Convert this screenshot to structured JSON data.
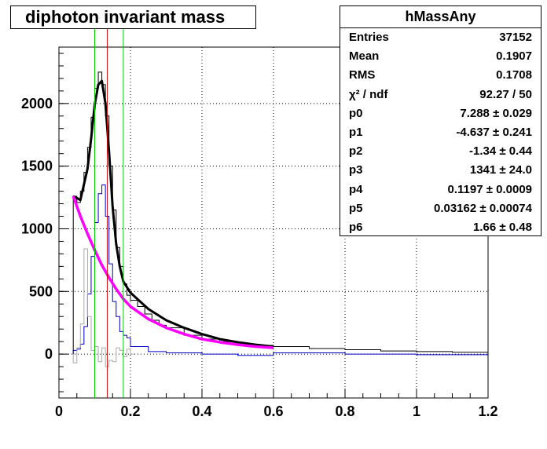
{
  "window": {
    "title": "diphoton invariant mass"
  },
  "stats": {
    "name": "hMassAny",
    "rows": [
      {
        "key": "Entries",
        "value": "37152"
      },
      {
        "key": "Mean",
        "value": "0.1907"
      },
      {
        "key": "RMS",
        "value": "0.1708"
      },
      {
        "key": "χ² / ndf",
        "value": "92.27 / 50"
      },
      {
        "key": "p0",
        "value": "7.288 ± 0.029"
      },
      {
        "key": "p1",
        "value": "-4.637 ± 0.241"
      },
      {
        "key": "p2",
        "value": "-1.34 ± 0.44"
      },
      {
        "key": "p3",
        "value": "1341 ± 24.0"
      },
      {
        "key": "p4",
        "value": "0.1197 ± 0.0009"
      },
      {
        "key": "p5",
        "value": "0.03162 ± 0.00074"
      },
      {
        "key": "p6",
        "value": "1.66 ± 0.48"
      }
    ]
  },
  "chart_data": {
    "type": "line",
    "title": "diphoton invariant mass",
    "xlabel": "",
    "ylabel": "",
    "xlim": [
      0,
      1.2
    ],
    "ylim": [
      -350,
      2450
    ],
    "grid": true,
    "xticks": [
      0,
      0.2,
      0.4,
      0.6,
      0.8,
      1,
      1.2
    ],
    "xtick_labels": [
      "0",
      "0.2",
      "0.4",
      "0.6",
      "0.8",
      "1",
      "1.2"
    ],
    "yticks": [
      0,
      500,
      1000,
      1500,
      2000
    ],
    "ytick_labels": [
      "0",
      "500",
      "1000",
      "1500",
      "2000"
    ],
    "vertical_lines": [
      {
        "x": 0.1,
        "color": "#00cc00"
      },
      {
        "x": 0.135,
        "color": "#cc0000"
      },
      {
        "x": 0.18,
        "color": "#00cc00"
      }
    ],
    "colors": {
      "total_hist": "#000000",
      "signal_hist": "#0000cc",
      "other_hist": "#aaaaaa",
      "fit_total": "#000000",
      "fit_background": "#ff00ff"
    },
    "series": [
      {
        "kind": "histogram",
        "color_key": "total_hist",
        "x": [
          0.04,
          0.05,
          0.06,
          0.07,
          0.08,
          0.09,
          0.1,
          0.11,
          0.12,
          0.13,
          0.14,
          0.15,
          0.16,
          0.17,
          0.18,
          0.19,
          0.2,
          0.22,
          0.24,
          0.26,
          0.28,
          0.3,
          0.35,
          0.4,
          0.45,
          0.5,
          0.55,
          0.6,
          0.7,
          0.8,
          0.9,
          1.0,
          1.1,
          1.2
        ],
        "values": [
          1260,
          1210,
          1300,
          1450,
          1650,
          1890,
          2120,
          2250,
          2150,
          1900,
          1500,
          1150,
          850,
          700,
          560,
          470,
          430,
          380,
          320,
          270,
          230,
          210,
          150,
          120,
          100,
          80,
          70,
          60,
          45,
          35,
          25,
          20,
          15,
          10
        ]
      },
      {
        "kind": "histogram",
        "color_key": "signal_hist",
        "x": [
          0.04,
          0.05,
          0.06,
          0.07,
          0.08,
          0.09,
          0.1,
          0.11,
          0.12,
          0.13,
          0.14,
          0.15,
          0.16,
          0.17,
          0.18,
          0.19,
          0.2,
          0.25,
          0.3,
          0.4,
          0.5,
          0.6,
          0.8,
          1.0,
          1.2
        ],
        "values": [
          30,
          40,
          80,
          220,
          480,
          780,
          1050,
          1280,
          1350,
          1100,
          720,
          420,
          300,
          180,
          150,
          130,
          60,
          20,
          10,
          0,
          -10,
          10,
          0,
          -5,
          0
        ]
      },
      {
        "kind": "histogram",
        "color_key": "other_hist",
        "x": [
          0.04,
          0.05,
          0.06,
          0.07,
          0.08,
          0.09,
          0.1,
          0.11,
          0.12,
          0.13,
          0.14,
          0.15,
          0.16,
          0.17,
          0.18,
          0.19,
          0.2
        ],
        "values": [
          -70,
          50,
          240,
          840,
          300,
          30,
          60,
          -60,
          50,
          -100,
          -50,
          -60,
          50,
          30,
          -20,
          40,
          0
        ]
      },
      {
        "kind": "curve",
        "color_key": "fit_total",
        "x": [
          0.04,
          0.06,
          0.08,
          0.09,
          0.1,
          0.11,
          0.12,
          0.13,
          0.14,
          0.15,
          0.16,
          0.17,
          0.18,
          0.2,
          0.25,
          0.3,
          0.35,
          0.4,
          0.45,
          0.5,
          0.55,
          0.6
        ],
        "values": [
          1260,
          1230,
          1480,
          1720,
          1990,
          2150,
          2180,
          2000,
          1620,
          1180,
          880,
          700,
          580,
          490,
          360,
          270,
          210,
          160,
          120,
          95,
          75,
          60
        ]
      },
      {
        "kind": "curve",
        "color_key": "fit_background",
        "x": [
          0.04,
          0.06,
          0.08,
          0.1,
          0.12,
          0.14,
          0.16,
          0.18,
          0.2,
          0.25,
          0.3,
          0.35,
          0.4,
          0.45,
          0.5,
          0.55,
          0.6
        ],
        "values": [
          1260,
          1100,
          960,
          830,
          710,
          610,
          520,
          440,
          380,
          280,
          210,
          160,
          120,
          95,
          75,
          60,
          50
        ]
      }
    ]
  }
}
